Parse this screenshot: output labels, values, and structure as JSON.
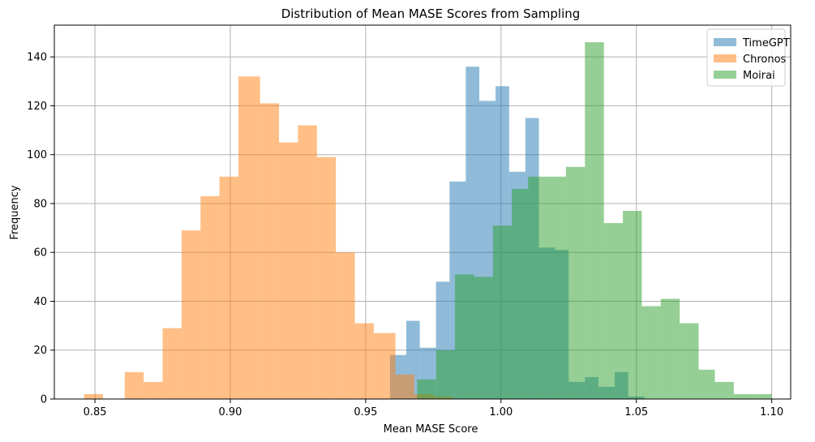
{
  "chart_data": {
    "type": "bar",
    "title": "Distribution of Mean MASE Scores from Sampling",
    "xlabel": "Mean MASE Score",
    "ylabel": "Frequency",
    "xlim": [
      0.835,
      1.107
    ],
    "ylim": [
      0,
      153
    ],
    "xticks": [
      0.85,
      0.9,
      0.95,
      1.0,
      1.05,
      1.1
    ],
    "xtick_labels": [
      "0.85",
      "0.90",
      "0.95",
      "1.00",
      "1.05",
      "1.10"
    ],
    "yticks": [
      0,
      20,
      40,
      60,
      80,
      100,
      120,
      140
    ],
    "ytick_labels": [
      "0",
      "20",
      "40",
      "60",
      "80",
      "100",
      "120",
      "140"
    ],
    "grid": true,
    "legend_position": "top-right",
    "series": [
      {
        "name": "TimeGPT",
        "color": "#1f77b4",
        "opacity": 0.5,
        "bins": [
          [
            0.959,
            0.965
          ],
          [
            0.965,
            0.97
          ],
          [
            0.97,
            0.976
          ],
          [
            0.976,
            0.981
          ],
          [
            0.981,
            0.987
          ],
          [
            0.987,
            0.992
          ],
          [
            0.992,
            0.998
          ],
          [
            0.998,
            1.003
          ],
          [
            1.003,
            1.009
          ],
          [
            1.009,
            1.014
          ],
          [
            1.014,
            1.02
          ],
          [
            1.02,
            1.025
          ],
          [
            1.025,
            1.031
          ],
          [
            1.031,
            1.036
          ],
          [
            1.036,
            1.042
          ],
          [
            1.042,
            1.047
          ],
          [
            1.047,
            1.053
          ]
        ],
        "values": [
          18,
          32,
          21,
          48,
          89,
          136,
          122,
          128,
          93,
          115,
          62,
          61,
          7,
          9,
          5,
          11,
          1
        ]
      },
      {
        "name": "Chronos",
        "color": "#ff7f0e",
        "opacity": 0.5,
        "bins": [
          [
            0.846,
            0.853
          ],
          [
            0.853,
            0.861
          ],
          [
            0.861,
            0.868
          ],
          [
            0.868,
            0.875
          ],
          [
            0.875,
            0.882
          ],
          [
            0.882,
            0.889
          ],
          [
            0.889,
            0.896
          ],
          [
            0.896,
            0.903
          ],
          [
            0.903,
            0.911
          ],
          [
            0.911,
            0.918
          ],
          [
            0.918,
            0.925
          ],
          [
            0.925,
            0.932
          ],
          [
            0.932,
            0.939
          ],
          [
            0.939,
            0.946
          ],
          [
            0.946,
            0.953
          ],
          [
            0.953,
            0.961
          ],
          [
            0.961,
            0.968
          ],
          [
            0.968,
            0.975
          ],
          [
            0.975,
            0.982
          ]
        ],
        "values": [
          2,
          0,
          11,
          7,
          29,
          69,
          83,
          91,
          132,
          121,
          105,
          112,
          99,
          60,
          31,
          27,
          10,
          2,
          1
        ]
      },
      {
        "name": "Moirai",
        "color": "#2ca02c",
        "opacity": 0.5,
        "bins": [
          [
            0.969,
            0.976
          ],
          [
            0.976,
            0.983
          ],
          [
            0.983,
            0.99
          ],
          [
            0.99,
            0.997
          ],
          [
            0.997,
            1.004
          ],
          [
            1.004,
            1.01
          ],
          [
            1.01,
            1.017
          ],
          [
            1.017,
            1.024
          ],
          [
            1.024,
            1.031
          ],
          [
            1.031,
            1.038
          ],
          [
            1.038,
            1.045
          ],
          [
            1.045,
            1.052
          ],
          [
            1.052,
            1.059
          ],
          [
            1.059,
            1.066
          ],
          [
            1.066,
            1.073
          ],
          [
            1.073,
            1.079
          ],
          [
            1.079,
            1.086
          ],
          [
            1.086,
            1.093
          ],
          [
            1.093,
            1.1
          ]
        ],
        "values": [
          8,
          20,
          51,
          50,
          71,
          86,
          91,
          91,
          95,
          146,
          72,
          77,
          38,
          41,
          31,
          12,
          7,
          2,
          2
        ]
      }
    ]
  }
}
